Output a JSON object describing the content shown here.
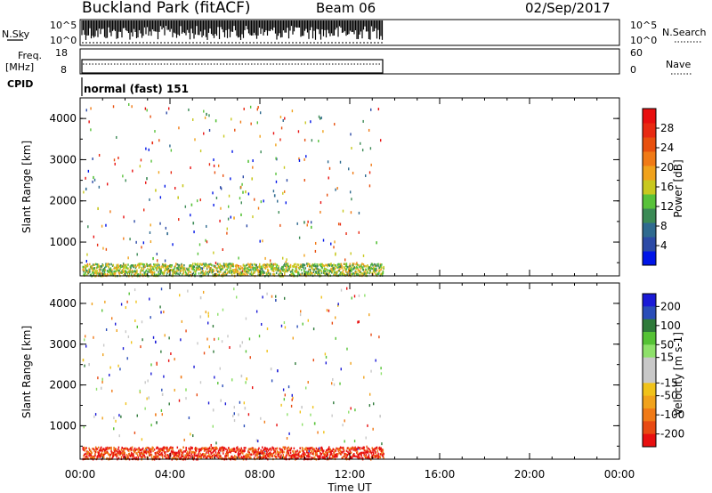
{
  "header": {
    "title": "Buckland Park (fitACF)",
    "beam": "Beam 06",
    "date": "02/Sep/2017"
  },
  "noise_panel": {
    "left_label": "N.Sky",
    "right_label": "N.Search",
    "ticks": [
      "10^5",
      "10^0"
    ]
  },
  "freq_panel": {
    "left_label_1": "Freq.",
    "left_label_2": "[MHz]",
    "left_ticks": [
      "18",
      "8"
    ],
    "right_label": "Nave",
    "right_ticks": [
      "60",
      "0"
    ]
  },
  "cpid": {
    "label": "CPID",
    "mode_text": "normal (fast) 151"
  },
  "chart_data": [
    {
      "type": "heatmap",
      "name": "power",
      "ylabel": "Slant Range [km]",
      "xlabel": "",
      "ylim": [
        180,
        4500
      ],
      "xlim": [
        0,
        24
      ],
      "yticks": [
        1000,
        2000,
        3000,
        4000
      ],
      "ytick_labels": [
        "1000",
        "2000",
        "3000",
        "4000"
      ],
      "colorbar": {
        "label": "Power [dB]",
        "range": [
          0,
          32
        ],
        "tick_values": [
          4,
          8,
          12,
          16,
          20,
          24,
          28
        ],
        "tick_labels": [
          "4",
          "8",
          "12",
          "16",
          "20",
          "24",
          "28"
        ],
        "colors": [
          "#0015e8",
          "#2c4aa6",
          "#2f6a8f",
          "#3b8a55",
          "#58c23a",
          "#c8c81f",
          "#f0a21c",
          "#f07a16",
          "#e8500e",
          "#e82a12",
          "#e80f0f"
        ]
      },
      "regions": [
        {
          "t0": 0.1,
          "t1": 5.5,
          "r0": 1600,
          "r1": 2700,
          "level": 15
        },
        {
          "t0": 4.5,
          "t1": 7.8,
          "r0": 1400,
          "r1": 2500,
          "level": 18
        },
        {
          "t0": 7.0,
          "t1": 8.8,
          "r0": 1900,
          "r1": 3300,
          "level": 14
        },
        {
          "t0": 8.8,
          "t1": 10.6,
          "r0": 1000,
          "r1": 1900,
          "level": 12
        },
        {
          "t0": 12.6,
          "t1": 13.5,
          "r0": 700,
          "r1": 1700,
          "level": 17
        },
        {
          "t0": 2.6,
          "t1": 3.6,
          "r0": 3000,
          "r1": 3800,
          "level": 22
        },
        {
          "t0": 2.5,
          "t1": 4.2,
          "r0": 600,
          "r1": 1400,
          "level": 12
        },
        {
          "t0": 5.2,
          "t1": 7.2,
          "r0": 3600,
          "r1": 4400,
          "level": 8
        }
      ]
    },
    {
      "type": "heatmap",
      "name": "velocity",
      "ylabel": "Slant Range [km]",
      "xlabel": "Time UT",
      "ylim": [
        180,
        4500
      ],
      "xlim": [
        0,
        24
      ],
      "yticks": [
        1000,
        2000,
        3000,
        4000
      ],
      "ytick_labels": [
        "1000",
        "2000",
        "3000",
        "4000"
      ],
      "xticks": [
        0,
        4,
        8,
        12,
        16,
        20,
        24
      ],
      "xtick_labels": [
        "00:00",
        "04:00",
        "08:00",
        "12:00",
        "16:00",
        "20:00",
        "00:00"
      ],
      "colorbar": {
        "label": "Velocity [m s-1]",
        "tick_labels": [
          "200",
          "100",
          "50",
          "15",
          "-15",
          "-50",
          "-100",
          "-200"
        ],
        "colors": [
          "#1a1ad6",
          "#2a4db8",
          "#2f7a3a",
          "#55c235",
          "#8ee06a",
          "#c8c8c8",
          "#c8c8c8",
          "#f0c21a",
          "#f0a21c",
          "#f07a16",
          "#e84a12",
          "#e81010"
        ]
      },
      "regions": [
        {
          "t0": 0.1,
          "t1": 5.5,
          "r0": 1600,
          "r1": 2700,
          "level": 5
        },
        {
          "t0": 4.5,
          "t1": 7.8,
          "r0": 1400,
          "r1": 2500,
          "level": 5
        },
        {
          "t0": 7.0,
          "t1": 8.8,
          "r0": 1900,
          "r1": 3300,
          "level": 6
        },
        {
          "t0": 8.8,
          "t1": 10.6,
          "r0": 1000,
          "r1": 1900,
          "level": 3
        },
        {
          "t0": 8.7,
          "t1": 9.2,
          "r0": 1700,
          "r1": 2400,
          "level": 0
        },
        {
          "t0": 12.6,
          "t1": 13.5,
          "r0": 700,
          "r1": 1700,
          "level": 5
        },
        {
          "t0": 2.6,
          "t1": 3.4,
          "r0": 3000,
          "r1": 3600,
          "level": 0
        },
        {
          "t0": 2.5,
          "t1": 4.2,
          "r0": 600,
          "r1": 1400,
          "level": 8
        },
        {
          "t0": 5.2,
          "t1": 7.2,
          "r0": 3600,
          "r1": 4400,
          "level": 5
        }
      ]
    }
  ]
}
